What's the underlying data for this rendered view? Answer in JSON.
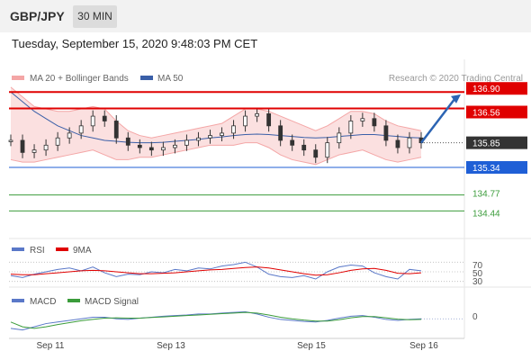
{
  "header": {
    "pair": "GBP/JPY",
    "timeframe": "30 MIN",
    "datetime": "Tuesday, September 15, 2020 9:48:03 PM CET"
  },
  "colors": {
    "price_band": "#f4a6a6",
    "ma50": "#3a5fa8",
    "resistance": "#e00000",
    "support": "#1f5fd6",
    "target": "#3b9c3b",
    "rsi": "#5a78c8",
    "rsi_ma": "#e00000",
    "macd": "#5a78c8",
    "macd_signal": "#3b9c3b",
    "current": "#333333"
  },
  "chart_data": [
    {
      "type": "line",
      "title": "",
      "legend": [
        "MA 20 + Bollinger Bands",
        "MA 50"
      ],
      "credit": "Research © 2020 Trading Central",
      "x_ticks": [
        "Sep 11",
        "Sep 13",
        "Sep 15",
        "Sep 16"
      ],
      "levels": [
        {
          "label": "136.90",
          "value": 136.9,
          "kind": "resistance"
        },
        {
          "label": "136.56",
          "value": 136.56,
          "kind": "resistance"
        },
        {
          "label": "135.85",
          "value": 135.85,
          "kind": "current"
        },
        {
          "label": "135.34",
          "value": 135.34,
          "kind": "support"
        },
        {
          "label": "134.77",
          "value": 134.77,
          "kind": "target"
        },
        {
          "label": "134.44",
          "value": 134.44,
          "kind": "target"
        }
      ],
      "close": [
        135.9,
        135.65,
        135.7,
        135.8,
        135.95,
        136.05,
        136.2,
        136.4,
        136.3,
        135.95,
        135.8,
        135.75,
        135.7,
        135.75,
        135.8,
        135.9,
        135.95,
        136.0,
        136.05,
        136.2,
        136.4,
        136.45,
        136.2,
        135.9,
        135.8,
        135.7,
        135.55,
        135.85,
        136.05,
        136.3,
        136.35,
        136.2,
        135.9,
        135.75,
        135.95,
        135.85
      ],
      "ma50": [
        136.9,
        136.7,
        136.5,
        136.35,
        136.2,
        136.1,
        136.0,
        135.95,
        135.9,
        135.88,
        135.86,
        135.85,
        135.85,
        135.86,
        135.88,
        135.9,
        135.92,
        135.95,
        135.97,
        136.0,
        136.02,
        136.03,
        136.02,
        136.0,
        135.98,
        135.96,
        135.95,
        135.96,
        135.98,
        136.0,
        136.02,
        136.02,
        136.0,
        135.98,
        135.96,
        135.95
      ],
      "bb_upper": [
        137.0,
        136.8,
        136.6,
        136.55,
        136.5,
        136.5,
        136.55,
        136.6,
        136.55,
        136.3,
        136.1,
        136.0,
        135.95,
        136.0,
        136.05,
        136.1,
        136.15,
        136.2,
        136.25,
        136.4,
        136.55,
        136.55,
        136.5,
        136.4,
        136.3,
        136.2,
        136.1,
        136.2,
        136.35,
        136.5,
        136.5,
        136.45,
        136.3,
        136.2,
        136.15,
        136.1
      ],
      "bb_lower": [
        135.5,
        135.45,
        135.45,
        135.5,
        135.55,
        135.6,
        135.65,
        135.7,
        135.6,
        135.5,
        135.5,
        135.55,
        135.55,
        135.6,
        135.65,
        135.7,
        135.75,
        135.8,
        135.8,
        135.8,
        135.85,
        135.85,
        135.75,
        135.6,
        135.5,
        135.45,
        135.4,
        135.5,
        135.6,
        135.65,
        135.7,
        135.6,
        135.5,
        135.45,
        135.5,
        135.55
      ],
      "ylim": [
        134.0,
        137.5
      ]
    },
    {
      "type": "line",
      "legend": [
        "RSI",
        "9MA"
      ],
      "ticks": [
        "70",
        "50",
        "30"
      ],
      "rsi": [
        42,
        38,
        45,
        50,
        55,
        58,
        52,
        60,
        48,
        40,
        45,
        44,
        50,
        48,
        55,
        52,
        58,
        56,
        62,
        65,
        70,
        60,
        45,
        40,
        38,
        42,
        35,
        50,
        60,
        64,
        62,
        48,
        40,
        35,
        55,
        52
      ],
      "rsi_ma": [
        45,
        44,
        44,
        46,
        48,
        50,
        52,
        53,
        52,
        50,
        48,
        46,
        46,
        47,
        48,
        50,
        52,
        54,
        55,
        57,
        59,
        60,
        58,
        54,
        50,
        46,
        43,
        44,
        48,
        53,
        56,
        57,
        53,
        47,
        46,
        48
      ],
      "ylim": [
        20,
        80
      ]
    },
    {
      "type": "line",
      "legend": [
        "MACD",
        "MACD Signal"
      ],
      "ticks": [
        "0"
      ],
      "macd": [
        -0.3,
        -0.35,
        -0.25,
        -0.15,
        -0.1,
        -0.05,
        0.0,
        0.05,
        0.05,
        0.0,
        -0.02,
        0.02,
        0.05,
        0.08,
        0.1,
        0.12,
        0.15,
        0.15,
        0.18,
        0.2,
        0.22,
        0.15,
        0.05,
        -0.02,
        -0.05,
        -0.08,
        -0.1,
        -0.05,
        0.02,
        0.08,
        0.1,
        0.05,
        -0.02,
        -0.05,
        -0.02,
        0.0
      ],
      "macd_signal": [
        -0.1,
        -0.25,
        -0.3,
        -0.25,
        -0.18,
        -0.12,
        -0.06,
        -0.02,
        0.02,
        0.03,
        0.02,
        0.02,
        0.04,
        0.06,
        0.08,
        0.1,
        0.12,
        0.14,
        0.16,
        0.18,
        0.2,
        0.18,
        0.12,
        0.05,
        0.0,
        -0.04,
        -0.07,
        -0.07,
        -0.03,
        0.03,
        0.07,
        0.07,
        0.03,
        -0.01,
        -0.03,
        -0.02
      ],
      "ylim": [
        -0.5,
        0.4
      ]
    }
  ]
}
